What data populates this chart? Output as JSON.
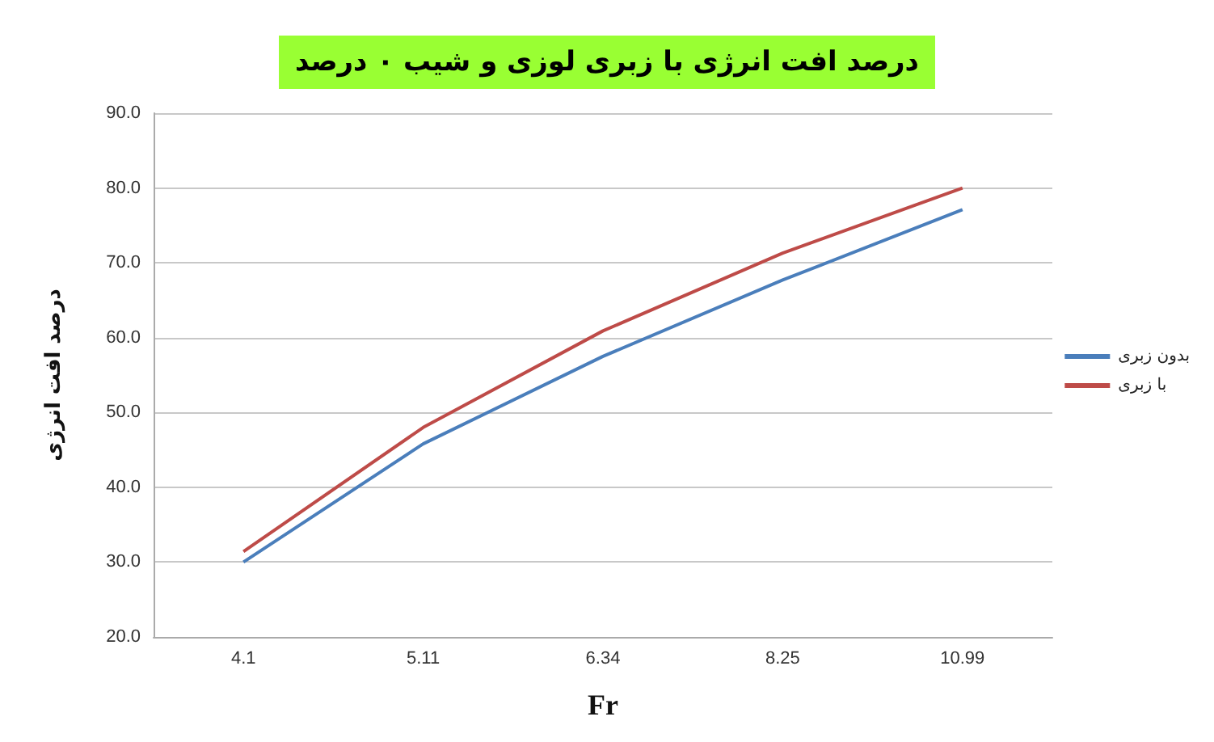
{
  "chart_data": {
    "type": "line",
    "title": "درصد افت انرژی با زبری لوزی و شیب ۰ درصد",
    "xlabel": "Fr",
    "ylabel": "درصد افت انرژی",
    "categories": [
      "4.1",
      "5.11",
      "6.34",
      "8.25",
      "10.99"
    ],
    "series": [
      {
        "name": "بدون زبری",
        "color": "#4a7ebb",
        "values": [
          30.0,
          45.8,
          57.5,
          67.7,
          77.1
        ]
      },
      {
        "name": "با زبری",
        "color": "#be4b48",
        "values": [
          31.4,
          48.0,
          60.9,
          71.3,
          80.0
        ]
      }
    ],
    "ylim": [
      20,
      90
    ],
    "yticks": [
      {
        "value": 20,
        "label": "20.0"
      },
      {
        "value": 30,
        "label": "30.0"
      },
      {
        "value": 40,
        "label": "40.0"
      },
      {
        "value": 50,
        "label": "50.0"
      },
      {
        "value": 60,
        "label": "60.0"
      },
      {
        "value": 70,
        "label": "70.0"
      },
      {
        "value": 80,
        "label": "80.0"
      },
      {
        "value": 90,
        "label": "90.0"
      }
    ],
    "grid": "y",
    "legend": "right",
    "marker": "none",
    "line_style": "solid"
  }
}
